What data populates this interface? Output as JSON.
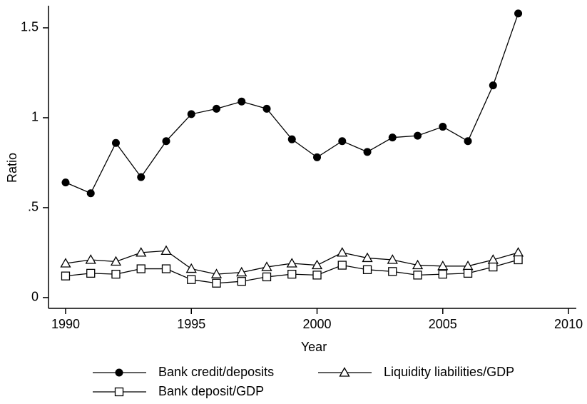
{
  "chart_data": {
    "type": "line",
    "x_label": "Year",
    "y_label": "Ratio",
    "x": [
      1990,
      1991,
      1992,
      1993,
      1994,
      1995,
      1996,
      1997,
      1998,
      1999,
      2000,
      2001,
      2002,
      2003,
      2004,
      2005,
      2006,
      2007,
      2008
    ],
    "series": [
      {
        "name": "Bank credit/deposits",
        "color": "#000000",
        "marker": "circle",
        "values": [
          0.64,
          0.58,
          0.86,
          0.67,
          0.87,
          1.02,
          1.05,
          1.09,
          1.05,
          0.88,
          0.78,
          0.87,
          0.81,
          0.89,
          0.9,
          0.95,
          0.87,
          1.18,
          1.58
        ]
      },
      {
        "name": "Liquidity liabilities/GDP",
        "color": "#000000",
        "marker": "triangle",
        "values": [
          0.19,
          0.21,
          0.2,
          0.25,
          0.26,
          0.16,
          0.13,
          0.14,
          0.17,
          0.19,
          0.18,
          0.25,
          0.22,
          0.21,
          0.18,
          0.175,
          0.175,
          0.21,
          0.25
        ]
      },
      {
        "name": "Bank deposit/GDP",
        "color": "#000000",
        "marker": "square",
        "values": [
          0.12,
          0.135,
          0.13,
          0.16,
          0.16,
          0.1,
          0.08,
          0.09,
          0.115,
          0.13,
          0.125,
          0.18,
          0.155,
          0.145,
          0.125,
          0.13,
          0.135,
          0.17,
          0.21
        ]
      }
    ],
    "xlim": [
      1989.32,
      2010.31
    ],
    "xticks": [
      1990,
      1995,
      2000,
      2005,
      2010
    ],
    "ylim": [
      -0.06,
      1.623
    ],
    "yticks": [
      0,
      {
        "value": 0.5,
        "label": ".5"
      },
      1,
      1.5
    ],
    "grid": false,
    "legend": "bottom"
  }
}
